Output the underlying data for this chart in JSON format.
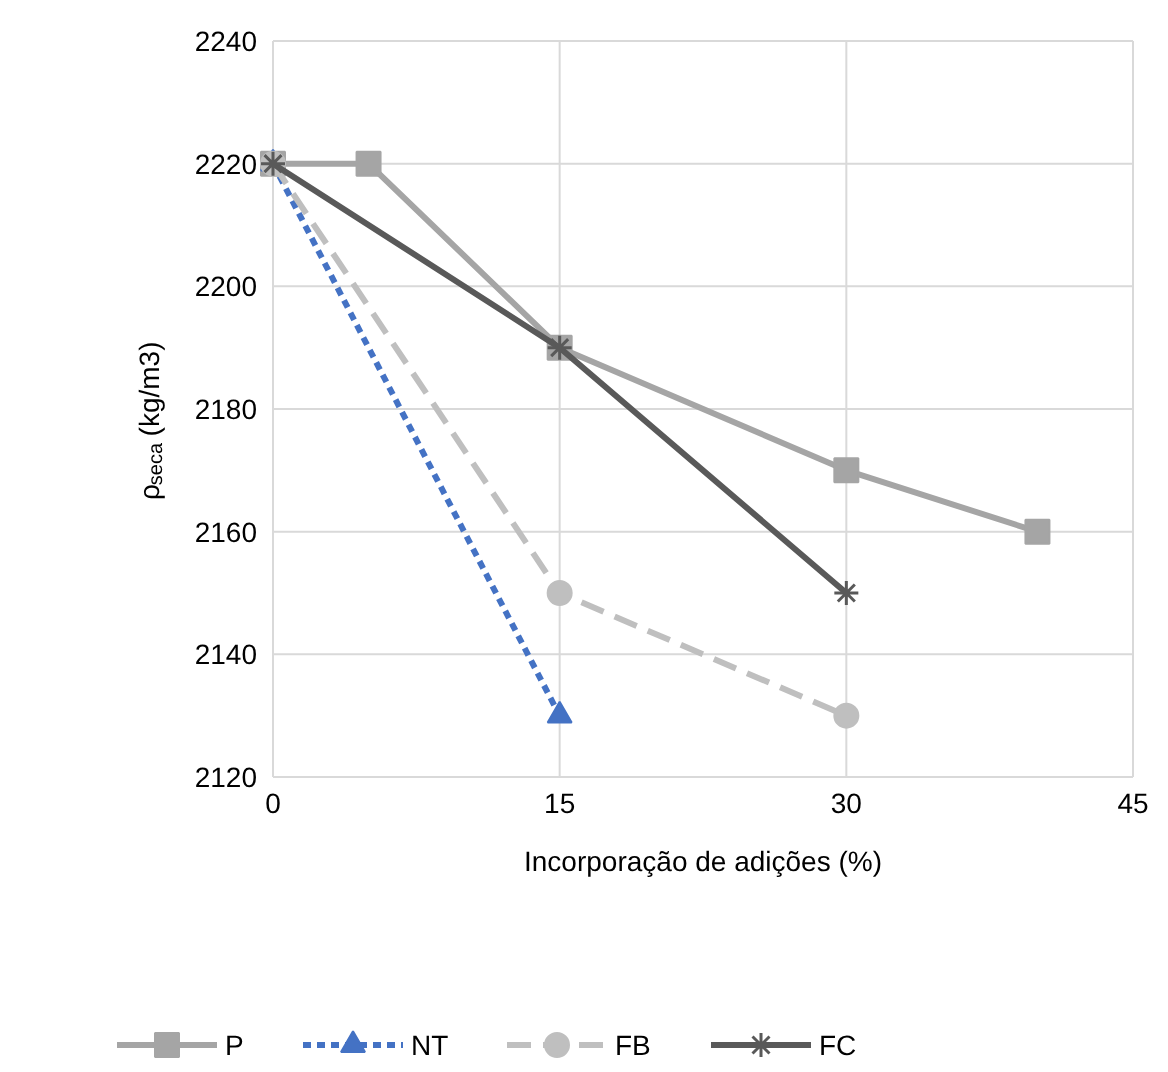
{
  "chart_data": {
    "type": "line",
    "xlabel": "Incorporação de adições (%)",
    "ylabel": "ρ$_{seca}$ (kg/m3)",
    "xlim": [
      0,
      45
    ],
    "xticks": [
      0,
      15,
      30,
      45
    ],
    "ylim": [
      2120,
      2240
    ],
    "yticks": [
      2120,
      2140,
      2160,
      2180,
      2200,
      2220,
      2240
    ],
    "grid": true,
    "legend": "bottom",
    "series": [
      {
        "name": "P",
        "color": "#a5a5a5",
        "marker": "square",
        "line_style": "solid",
        "x": [
          0,
          5,
          15,
          30,
          40
        ],
        "values": [
          2220,
          2220,
          2190,
          2170,
          2160
        ]
      },
      {
        "name": "NT",
        "color": "#4472c4",
        "marker": "triangle",
        "line_style": "dotted",
        "x": [
          0,
          15
        ],
        "values": [
          2220,
          2130
        ]
      },
      {
        "name": "FB",
        "color": "#bfbfbf",
        "marker": "circle",
        "line_style": "dashed",
        "x": [
          0,
          15,
          30
        ],
        "values": [
          2220,
          2150,
          2130
        ]
      },
      {
        "name": "FC",
        "color": "#595959",
        "marker": "cross",
        "line_style": "solid",
        "x": [
          0,
          15,
          30
        ],
        "values": [
          2220,
          2190,
          2150
        ]
      }
    ]
  }
}
